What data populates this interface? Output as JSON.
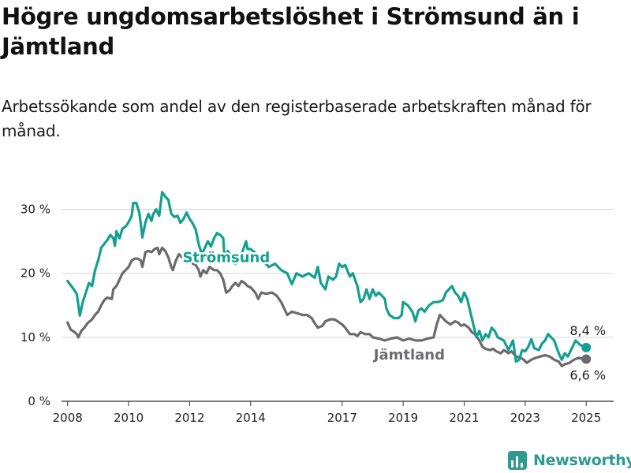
{
  "header": {
    "title": "Högre ungdomsarbetslöshet i Strömsund än i Jämtland",
    "subtitle": "Arbetssökande som andel av den registerbaserade arbetskraften månad för månad."
  },
  "brand": {
    "name": "Newsworthy",
    "color": "#2f9a8f"
  },
  "chart_data": {
    "type": "line",
    "xlabel": "",
    "ylabel": "",
    "x_range": [
      2007.8,
      2025.9
    ],
    "ylim": [
      0,
      35
    ],
    "y_ticks": [
      0,
      10,
      20,
      30
    ],
    "y_tick_labels": [
      "0 %",
      "10 %",
      "20 %",
      "30 %"
    ],
    "x_ticks": [
      2008,
      2010,
      2012,
      2014,
      2017,
      2019,
      2021,
      2023,
      2025
    ],
    "x_tick_labels": [
      "2008",
      "2010",
      "2012",
      "2014",
      "2017",
      "2019",
      "2021",
      "2023",
      "2025"
    ],
    "grid": true,
    "series": [
      {
        "name": "Strömsund",
        "color": "#13a090",
        "end_label": "8,4 %",
        "points": [
          [
            2008.0,
            18.8
          ],
          [
            2008.2,
            17.5
          ],
          [
            2008.3,
            16.8
          ],
          [
            2008.4,
            13.4
          ],
          [
            2008.5,
            15.6
          ],
          [
            2008.6,
            17.0
          ],
          [
            2008.7,
            18.5
          ],
          [
            2008.8,
            18.0
          ],
          [
            2008.9,
            20.5
          ],
          [
            2009.0,
            22.0
          ],
          [
            2009.1,
            24.0
          ],
          [
            2009.3,
            25.2
          ],
          [
            2009.4,
            26.0
          ],
          [
            2009.5,
            25.5
          ],
          [
            2009.55,
            24.3
          ],
          [
            2009.6,
            26.6
          ],
          [
            2009.7,
            25.5
          ],
          [
            2009.8,
            27.0
          ],
          [
            2009.9,
            27.3
          ],
          [
            2010.0,
            28.0
          ],
          [
            2010.1,
            29.0
          ],
          [
            2010.15,
            31.0
          ],
          [
            2010.25,
            31.0
          ],
          [
            2010.35,
            29.5
          ],
          [
            2010.4,
            27.6
          ],
          [
            2010.45,
            25.6
          ],
          [
            2010.55,
            28.0
          ],
          [
            2010.65,
            29.3
          ],
          [
            2010.75,
            28.2
          ],
          [
            2010.8,
            29.2
          ],
          [
            2010.9,
            30.0
          ],
          [
            2011.0,
            29.0
          ],
          [
            2011.1,
            32.7
          ],
          [
            2011.2,
            32.0
          ],
          [
            2011.3,
            31.5
          ],
          [
            2011.4,
            29.3
          ],
          [
            2011.5,
            28.8
          ],
          [
            2011.6,
            29.0
          ],
          [
            2011.7,
            27.9
          ],
          [
            2011.8,
            28.5
          ],
          [
            2011.9,
            29.5
          ],
          [
            2012.0,
            28.5
          ],
          [
            2012.1,
            27.8
          ],
          [
            2012.2,
            26.8
          ],
          [
            2012.3,
            24.5
          ],
          [
            2012.4,
            23.0
          ],
          [
            2012.5,
            24.0
          ],
          [
            2012.6,
            25.0
          ],
          [
            2012.7,
            24.2
          ],
          [
            2012.8,
            25.5
          ],
          [
            2012.9,
            26.3
          ],
          [
            2013.0,
            26.0
          ],
          [
            2013.1,
            25.5
          ],
          [
            2013.15,
            22.0
          ],
          [
            2013.25,
            23.5
          ],
          [
            2013.4,
            22.5
          ],
          [
            2013.5,
            21.5
          ],
          [
            2013.6,
            22.5
          ],
          [
            2013.7,
            23.0
          ],
          [
            2013.85,
            25.0
          ],
          [
            2013.9,
            23.8
          ],
          [
            2014.0,
            23.8
          ],
          [
            2014.2,
            23.0
          ],
          [
            2014.4,
            22.0
          ],
          [
            2014.6,
            21.0
          ],
          [
            2014.8,
            21.5
          ],
          [
            2015.0,
            20.5
          ],
          [
            2015.2,
            20.0
          ],
          [
            2015.35,
            18.3
          ],
          [
            2015.5,
            20.0
          ],
          [
            2015.7,
            19.5
          ],
          [
            2015.9,
            20.0
          ],
          [
            2016.1,
            19.3
          ],
          [
            2016.2,
            21.0
          ],
          [
            2016.3,
            18.5
          ],
          [
            2016.45,
            17.5
          ],
          [
            2016.55,
            19.5
          ],
          [
            2016.7,
            19.0
          ],
          [
            2016.8,
            19.5
          ],
          [
            2016.9,
            21.5
          ],
          [
            2017.0,
            21.0
          ],
          [
            2017.1,
            21.3
          ],
          [
            2017.25,
            19.5
          ],
          [
            2017.35,
            20.0
          ],
          [
            2017.5,
            18.0
          ],
          [
            2017.6,
            15.5
          ],
          [
            2017.7,
            16.0
          ],
          [
            2017.8,
            17.5
          ],
          [
            2017.9,
            16.0
          ],
          [
            2018.0,
            17.5
          ],
          [
            2018.1,
            16.5
          ],
          [
            2018.2,
            17.0
          ],
          [
            2018.3,
            16.5
          ],
          [
            2018.4,
            16.0
          ],
          [
            2018.45,
            14.5
          ],
          [
            2018.55,
            13.5
          ],
          [
            2018.7,
            13.0
          ],
          [
            2018.85,
            13.0
          ],
          [
            2018.95,
            13.5
          ],
          [
            2019.0,
            15.5
          ],
          [
            2019.15,
            15.0
          ],
          [
            2019.3,
            14.0
          ],
          [
            2019.4,
            12.5
          ],
          [
            2019.5,
            14.2
          ],
          [
            2019.6,
            14.5
          ],
          [
            2019.7,
            14.0
          ],
          [
            2019.85,
            15.0
          ],
          [
            2020.0,
            15.5
          ],
          [
            2020.15,
            15.5
          ],
          [
            2020.3,
            15.8
          ],
          [
            2020.4,
            17.0
          ],
          [
            2020.5,
            17.5
          ],
          [
            2020.6,
            18.0
          ],
          [
            2020.7,
            17.0
          ],
          [
            2020.8,
            16.5
          ],
          [
            2020.9,
            15.5
          ],
          [
            2021.0,
            17.0
          ],
          [
            2021.1,
            16.0
          ],
          [
            2021.2,
            14.0
          ],
          [
            2021.3,
            12.0
          ],
          [
            2021.4,
            10.0
          ],
          [
            2021.5,
            11.0
          ],
          [
            2021.6,
            9.5
          ],
          [
            2021.7,
            10.5
          ],
          [
            2021.8,
            10.0
          ],
          [
            2021.9,
            11.5
          ],
          [
            2022.0,
            11.0
          ],
          [
            2022.1,
            10.0
          ],
          [
            2022.3,
            9.5
          ],
          [
            2022.45,
            8.0
          ],
          [
            2022.6,
            9.5
          ],
          [
            2022.7,
            6.2
          ],
          [
            2022.8,
            6.5
          ],
          [
            2022.9,
            8.0
          ],
          [
            2023.0,
            7.8
          ],
          [
            2023.1,
            8.5
          ],
          [
            2023.2,
            9.7
          ],
          [
            2023.3,
            8.3
          ],
          [
            2023.45,
            8.0
          ],
          [
            2023.55,
            9.0
          ],
          [
            2023.65,
            9.5
          ],
          [
            2023.75,
            10.5
          ],
          [
            2023.85,
            10.0
          ],
          [
            2023.95,
            9.5
          ],
          [
            2024.1,
            7.5
          ],
          [
            2024.2,
            6.5
          ],
          [
            2024.3,
            7.5
          ],
          [
            2024.4,
            7.0
          ],
          [
            2024.5,
            8.0
          ],
          [
            2024.65,
            9.5
          ],
          [
            2024.8,
            8.8
          ],
          [
            2025.0,
            8.4
          ]
        ]
      },
      {
        "name": "Jämtland",
        "color": "#6b6b6f",
        "end_label": "6,6 %",
        "points": [
          [
            2008.0,
            12.3
          ],
          [
            2008.1,
            11.2
          ],
          [
            2008.2,
            10.9
          ],
          [
            2008.3,
            10.5
          ],
          [
            2008.35,
            10.0
          ],
          [
            2008.45,
            11.0
          ],
          [
            2008.55,
            11.5
          ],
          [
            2008.65,
            12.2
          ],
          [
            2008.8,
            12.8
          ],
          [
            2008.9,
            13.5
          ],
          [
            2009.0,
            14.0
          ],
          [
            2009.1,
            15.0
          ],
          [
            2009.2,
            15.8
          ],
          [
            2009.3,
            16.2
          ],
          [
            2009.45,
            16.0
          ],
          [
            2009.5,
            17.5
          ],
          [
            2009.6,
            18.0
          ],
          [
            2009.7,
            19.0
          ],
          [
            2009.8,
            20.0
          ],
          [
            2009.9,
            20.5
          ],
          [
            2010.0,
            21.0
          ],
          [
            2010.1,
            22.0
          ],
          [
            2010.2,
            22.3
          ],
          [
            2010.3,
            22.3
          ],
          [
            2010.4,
            22.0
          ],
          [
            2010.45,
            21.0
          ],
          [
            2010.55,
            23.3
          ],
          [
            2010.65,
            23.5
          ],
          [
            2010.75,
            23.3
          ],
          [
            2010.85,
            23.8
          ],
          [
            2010.95,
            24.0
          ],
          [
            2011.0,
            23.0
          ],
          [
            2011.1,
            24.0
          ],
          [
            2011.2,
            23.5
          ],
          [
            2011.3,
            22.5
          ],
          [
            2011.4,
            21.0
          ],
          [
            2011.45,
            20.5
          ],
          [
            2011.55,
            22.0
          ],
          [
            2011.65,
            23.0
          ],
          [
            2011.75,
            22.5
          ],
          [
            2011.85,
            23.0
          ],
          [
            2012.0,
            22.8
          ],
          [
            2012.1,
            21.5
          ],
          [
            2012.2,
            21.3
          ],
          [
            2012.3,
            20.5
          ],
          [
            2012.35,
            19.5
          ],
          [
            2012.45,
            20.5
          ],
          [
            2012.55,
            20.0
          ],
          [
            2012.65,
            21.0
          ],
          [
            2012.8,
            20.5
          ],
          [
            2012.9,
            20.5
          ],
          [
            2013.0,
            20.0
          ],
          [
            2013.1,
            19.0
          ],
          [
            2013.2,
            17.0
          ],
          [
            2013.3,
            17.3
          ],
          [
            2013.4,
            18.0
          ],
          [
            2013.5,
            18.5
          ],
          [
            2013.6,
            18.0
          ],
          [
            2013.7,
            18.8
          ],
          [
            2013.8,
            18.5
          ],
          [
            2013.9,
            18.0
          ],
          [
            2014.0,
            17.8
          ],
          [
            2014.15,
            17.0
          ],
          [
            2014.25,
            16.0
          ],
          [
            2014.35,
            17.0
          ],
          [
            2014.5,
            16.8
          ],
          [
            2014.7,
            17.0
          ],
          [
            2014.85,
            16.5
          ],
          [
            2015.0,
            15.5
          ],
          [
            2015.1,
            14.5
          ],
          [
            2015.2,
            13.5
          ],
          [
            2015.35,
            14.0
          ],
          [
            2015.5,
            13.8
          ],
          [
            2015.7,
            13.5
          ],
          [
            2015.85,
            13.5
          ],
          [
            2016.0,
            13.0
          ],
          [
            2016.1,
            12.2
          ],
          [
            2016.2,
            11.5
          ],
          [
            2016.35,
            11.8
          ],
          [
            2016.45,
            12.5
          ],
          [
            2016.6,
            12.8
          ],
          [
            2016.75,
            12.8
          ],
          [
            2016.85,
            12.5
          ],
          [
            2017.0,
            12.0
          ],
          [
            2017.1,
            11.5
          ],
          [
            2017.25,
            10.5
          ],
          [
            2017.4,
            10.5
          ],
          [
            2017.5,
            10.2
          ],
          [
            2017.6,
            10.8
          ],
          [
            2017.75,
            10.5
          ],
          [
            2017.9,
            10.5
          ],
          [
            2018.0,
            10.0
          ],
          [
            2018.2,
            9.8
          ],
          [
            2018.4,
            9.5
          ],
          [
            2018.6,
            9.8
          ],
          [
            2018.8,
            10.0
          ],
          [
            2019.0,
            9.5
          ],
          [
            2019.2,
            9.8
          ],
          [
            2019.4,
            9.5
          ],
          [
            2019.6,
            9.5
          ],
          [
            2019.8,
            9.8
          ],
          [
            2020.0,
            10.0
          ],
          [
            2020.1,
            12.0
          ],
          [
            2020.2,
            13.5
          ],
          [
            2020.3,
            13.0
          ],
          [
            2020.4,
            12.5
          ],
          [
            2020.55,
            12.0
          ],
          [
            2020.7,
            12.5
          ],
          [
            2020.8,
            12.3
          ],
          [
            2020.9,
            11.8
          ],
          [
            2021.0,
            12.0
          ],
          [
            2021.15,
            11.5
          ],
          [
            2021.25,
            10.8
          ],
          [
            2021.35,
            10.5
          ],
          [
            2021.5,
            9.5
          ],
          [
            2021.6,
            8.5
          ],
          [
            2021.7,
            8.2
          ],
          [
            2021.85,
            8.0
          ],
          [
            2021.95,
            8.2
          ],
          [
            2022.05,
            7.8
          ],
          [
            2022.2,
            7.5
          ],
          [
            2022.3,
            8.0
          ],
          [
            2022.45,
            7.5
          ],
          [
            2022.55,
            7.8
          ],
          [
            2022.7,
            7.0
          ],
          [
            2022.85,
            6.8
          ],
          [
            2022.95,
            6.5
          ],
          [
            2023.05,
            6.0
          ],
          [
            2023.2,
            6.5
          ],
          [
            2023.35,
            6.8
          ],
          [
            2023.5,
            7.0
          ],
          [
            2023.65,
            7.2
          ],
          [
            2023.8,
            7.0
          ],
          [
            2023.95,
            6.5
          ],
          [
            2024.1,
            6.2
          ],
          [
            2024.2,
            5.5
          ],
          [
            2024.3,
            5.8
          ],
          [
            2024.45,
            6.0
          ],
          [
            2024.6,
            6.5
          ],
          [
            2024.75,
            6.8
          ],
          [
            2024.9,
            6.6
          ],
          [
            2025.0,
            6.6
          ]
        ]
      }
    ]
  }
}
